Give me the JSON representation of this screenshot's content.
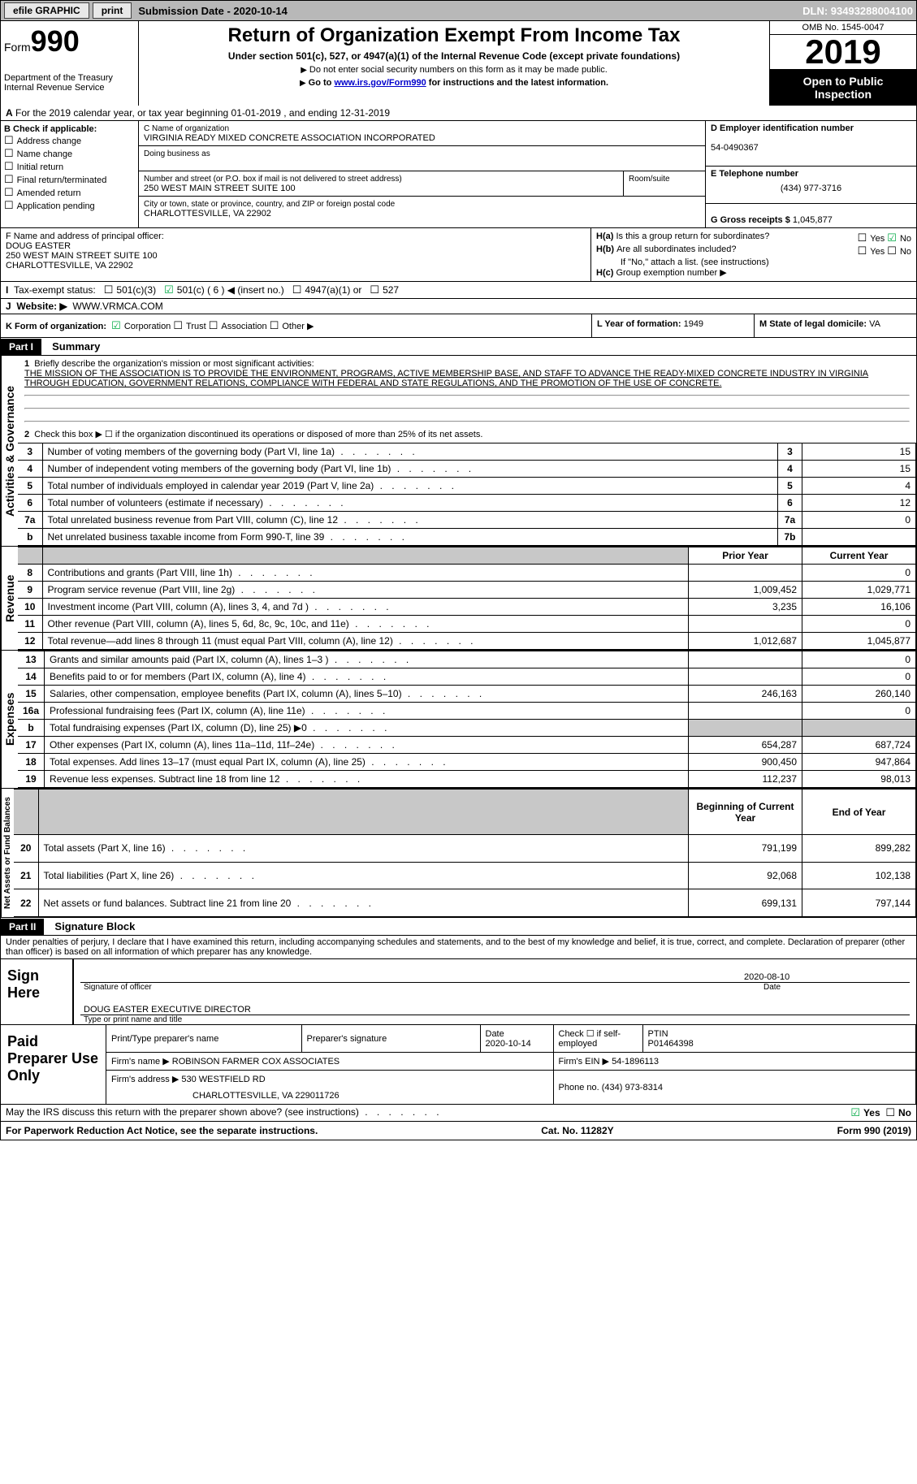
{
  "topbar": {
    "efile": "efile GRAPHIC",
    "print": "print",
    "submission": "Submission Date - 2020-10-14",
    "dln": "DLN: 93493288004100"
  },
  "header": {
    "form_prefix": "Form",
    "form_no": "990",
    "dept": "Department of the Treasury\nInternal Revenue Service",
    "title": "Return of Organization Exempt From Income Tax",
    "sub1": "Under section 501(c), 527, or 4947(a)(1) of the Internal Revenue Code (except private foundations)",
    "sub2a": "Do not enter social security numbers on this form as it may be made public.",
    "sub2b_pre": "Go to ",
    "sub2b_link": "www.irs.gov/Form990",
    "sub2b_post": " for instructions and the latest information.",
    "omb": "OMB No. 1545-0047",
    "year": "2019",
    "otp": "Open to Public Inspection"
  },
  "line_a": "For the 2019 calendar year, or tax year beginning 01-01-2019    , and ending 12-31-2019",
  "box_b": {
    "title": "B Check if applicable:",
    "opts": [
      "Address change",
      "Name change",
      "Initial return",
      "Final return/terminated",
      "Amended return",
      "Application pending"
    ]
  },
  "box_c": {
    "label": "C Name of organization",
    "name": "VIRGINIA READY MIXED CONCRETE ASSOCIATION INCORPORATED",
    "dba_label": "Doing business as",
    "dba": "",
    "addr_label": "Number and street (or P.O. box if mail is not delivered to street address)",
    "room_label": "Room/suite",
    "addr": "250 WEST MAIN STREET SUITE 100",
    "city_label": "City or town, state or province, country, and ZIP or foreign postal code",
    "city": "CHARLOTTESVILLE, VA  22902"
  },
  "box_d": {
    "label": "D Employer identification number",
    "val": "54-0490367"
  },
  "box_e": {
    "label": "E Telephone number",
    "val": "(434) 977-3716"
  },
  "box_g": {
    "label": "G Gross receipts $",
    "val": "1,045,877"
  },
  "box_f": {
    "label": "F  Name and address of principal officer:",
    "name": "DOUG EASTER",
    "addr1": "250 WEST MAIN STREET SUITE 100",
    "addr2": "CHARLOTTESVILLE, VA  22902"
  },
  "box_h": {
    "a": "Is this a group return for subordinates?",
    "b": "Are all subordinates included?",
    "note": "If \"No,\" attach a list. (see instructions)",
    "c": "Group exemption number ▶"
  },
  "box_i": {
    "label": "Tax-exempt status:",
    "c3": "501(c)(3)",
    "c": "501(c) ( 6 ) ◀ (insert no.)",
    "a1": "4947(a)(1) or",
    "s527": "527"
  },
  "box_j": {
    "label": "Website: ▶",
    "val": "WWW.VRMCA.COM"
  },
  "box_k": {
    "label": "K Form of organization:",
    "opts": [
      "Corporation",
      "Trust",
      "Association",
      "Other ▶"
    ]
  },
  "box_l": {
    "label": "L Year of formation:",
    "val": "1949"
  },
  "box_m": {
    "label": "M State of legal domicile:",
    "val": "VA"
  },
  "part1": {
    "hdr": "Part I",
    "title": "Summary",
    "l1_label": "Briefly describe the organization's mission or most significant activities:",
    "l1_text": "THE MISSION OF THE ASSOCIATION IS TO PROVIDE THE ENVIRONMENT, PROGRAMS, ACTIVE MEMBERSHIP BASE, AND STAFF TO ADVANCE THE READY-MIXED CONCRETE INDUSTRY IN VIRGINIA THROUGH EDUCATION, GOVERNMENT RELATIONS, COMPLIANCE WITH FEDERAL AND STATE REGULATIONS, AND THE PROMOTION OF THE USE OF CONCRETE.",
    "l2": "Check this box ▶ ☐  if the organization discontinued its operations or disposed of more than 25% of its net assets.",
    "rows_a": [
      {
        "n": "3",
        "d": "Number of voting members of the governing body (Part VI, line 1a)",
        "ln": "3",
        "v": "15"
      },
      {
        "n": "4",
        "d": "Number of independent voting members of the governing body (Part VI, line 1b)",
        "ln": "4",
        "v": "15"
      },
      {
        "n": "5",
        "d": "Total number of individuals employed in calendar year 2019 (Part V, line 2a)",
        "ln": "5",
        "v": "4"
      },
      {
        "n": "6",
        "d": "Total number of volunteers (estimate if necessary)",
        "ln": "6",
        "v": "12"
      },
      {
        "n": "7a",
        "d": "Total unrelated business revenue from Part VIII, column (C), line 12",
        "ln": "7a",
        "v": "0"
      },
      {
        "n": "b",
        "d": "Net unrelated business taxable income from Form 990-T, line 39",
        "ln": "7b",
        "v": ""
      }
    ],
    "col_prior": "Prior Year",
    "col_curr": "Current Year",
    "revenue": [
      {
        "n": "8",
        "d": "Contributions and grants (Part VIII, line 1h)",
        "p": "",
        "c": "0"
      },
      {
        "n": "9",
        "d": "Program service revenue (Part VIII, line 2g)",
        "p": "1,009,452",
        "c": "1,029,771"
      },
      {
        "n": "10",
        "d": "Investment income (Part VIII, column (A), lines 3, 4, and 7d )",
        "p": "3,235",
        "c": "16,106"
      },
      {
        "n": "11",
        "d": "Other revenue (Part VIII, column (A), lines 5, 6d, 8c, 9c, 10c, and 11e)",
        "p": "",
        "c": "0"
      },
      {
        "n": "12",
        "d": "Total revenue—add lines 8 through 11 (must equal Part VIII, column (A), line 12)",
        "p": "1,012,687",
        "c": "1,045,877"
      }
    ],
    "expenses": [
      {
        "n": "13",
        "d": "Grants and similar amounts paid (Part IX, column (A), lines 1–3 )",
        "p": "",
        "c": "0"
      },
      {
        "n": "14",
        "d": "Benefits paid to or for members (Part IX, column (A), line 4)",
        "p": "",
        "c": "0"
      },
      {
        "n": "15",
        "d": "Salaries, other compensation, employee benefits (Part IX, column (A), lines 5–10)",
        "p": "246,163",
        "c": "260,140"
      },
      {
        "n": "16a",
        "d": "Professional fundraising fees (Part IX, column (A), line 11e)",
        "p": "",
        "c": "0"
      },
      {
        "n": "b",
        "d": "Total fundraising expenses (Part IX, column (D), line 25) ▶0",
        "p": "shade",
        "c": "shade"
      },
      {
        "n": "17",
        "d": "Other expenses (Part IX, column (A), lines 11a–11d, 11f–24e)",
        "p": "654,287",
        "c": "687,724"
      },
      {
        "n": "18",
        "d": "Total expenses. Add lines 13–17 (must equal Part IX, column (A), line 25)",
        "p": "900,450",
        "c": "947,864"
      },
      {
        "n": "19",
        "d": "Revenue less expenses. Subtract line 18 from line 12",
        "p": "112,237",
        "c": "98,013"
      }
    ],
    "col_beg": "Beginning of Current Year",
    "col_end": "End of Year",
    "net": [
      {
        "n": "20",
        "d": "Total assets (Part X, line 16)",
        "p": "791,199",
        "c": "899,282"
      },
      {
        "n": "21",
        "d": "Total liabilities (Part X, line 26)",
        "p": "92,068",
        "c": "102,138"
      },
      {
        "n": "22",
        "d": "Net assets or fund balances. Subtract line 21 from line 20",
        "p": "699,131",
        "c": "797,144"
      }
    ],
    "vtab_ag": "Activities & Governance",
    "vtab_rev": "Revenue",
    "vtab_exp": "Expenses",
    "vtab_net": "Net Assets or Fund Balances"
  },
  "part2": {
    "hdr": "Part II",
    "title": "Signature Block",
    "decl": "Under penalties of perjury, I declare that I have examined this return, including accompanying schedules and statements, and to the best of my knowledge and belief, it is true, correct, and complete. Declaration of preparer (other than officer) is based on all information of which preparer has any knowledge.",
    "sign_here": "Sign Here",
    "sig_officer": "Signature of officer",
    "sig_date": "2020-08-10",
    "date_lbl": "Date",
    "officer_name": "DOUG EASTER  EXECUTIVE DIRECTOR",
    "name_lbl": "Type or print name and title",
    "paid": "Paid Preparer Use Only",
    "prep_name_lbl": "Print/Type preparer's name",
    "prep_sig_lbl": "Preparer's signature",
    "prep_date_lbl": "Date",
    "prep_date": "2020-10-14",
    "prep_check": "Check ☐ if self-employed",
    "ptin_lbl": "PTIN",
    "ptin": "P01464398",
    "firm_name_lbl": "Firm's name     ▶",
    "firm_name": "ROBINSON FARMER COX ASSOCIATES",
    "firm_ein_lbl": "Firm's EIN ▶",
    "firm_ein": "54-1896113",
    "firm_addr_lbl": "Firm's address ▶",
    "firm_addr": "530 WESTFIELD RD",
    "firm_city": "CHARLOTTESVILLE, VA  229011726",
    "phone_lbl": "Phone no.",
    "phone": "(434) 973-8314",
    "discuss": "May the IRS discuss this return with the preparer shown above? (see instructions)",
    "yes": "Yes",
    "no": "No"
  },
  "footer": {
    "l": "For Paperwork Reduction Act Notice, see the separate instructions.",
    "c": "Cat. No. 11282Y",
    "r": "Form 990 (2019)"
  }
}
